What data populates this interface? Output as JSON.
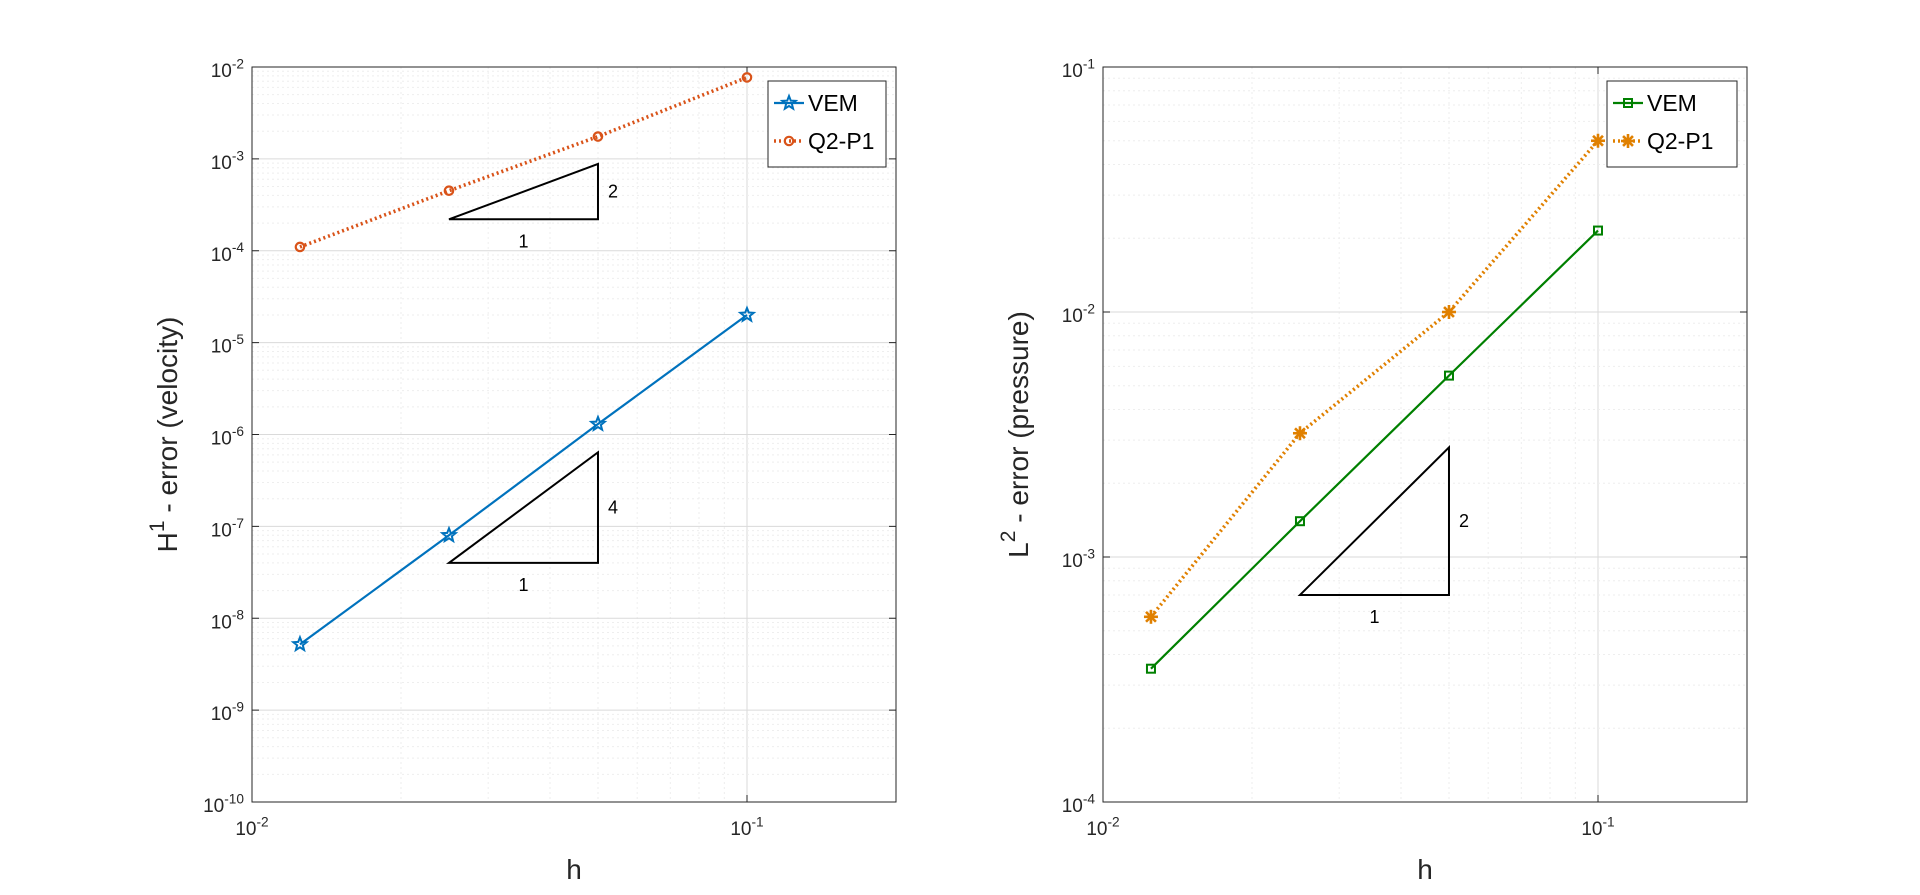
{
  "colors": {
    "vem_left": "#0072BD",
    "q2p1_left": "#D95319",
    "vem_right": "#008000",
    "q2p1_right": "#E08000",
    "axes": "#262626",
    "grid_major": "#DADADA",
    "grid_minor": "#EEEEEE",
    "triangle": "#000000"
  },
  "chart_data": [
    {
      "type": "line",
      "xscale": "log",
      "yscale": "log",
      "xlabel": "h",
      "ylabel_main": "H",
      "ylabel_sup": "1",
      "ylabel_rest": " - error (velocity)",
      "xlim": [
        0.01,
        0.2
      ],
      "ylim": [
        1e-10,
        0.01
      ],
      "xticks": [
        {
          "value": 0.01,
          "base": "10",
          "exp": "-2"
        },
        {
          "value": 0.1,
          "base": "10",
          "exp": "-1"
        }
      ],
      "yticks": [
        {
          "value": 1e-10,
          "base": "10",
          "exp": "-10"
        },
        {
          "value": 1e-09,
          "base": "10",
          "exp": "-9"
        },
        {
          "value": 1e-08,
          "base": "10",
          "exp": "-8"
        },
        {
          "value": 1e-07,
          "base": "10",
          "exp": "-7"
        },
        {
          "value": 1e-06,
          "base": "10",
          "exp": "-6"
        },
        {
          "value": 1e-05,
          "base": "10",
          "exp": "-5"
        },
        {
          "value": 0.0001,
          "base": "10",
          "exp": "-4"
        },
        {
          "value": 0.001,
          "base": "10",
          "exp": "-3"
        },
        {
          "value": 0.01,
          "base": "10",
          "exp": "-2"
        }
      ],
      "grid": true,
      "legend_position": "top-right",
      "series": [
        {
          "name": "VEM",
          "x": [
            0.0125,
            0.025,
            0.05,
            0.1
          ],
          "y": [
            5.2e-09,
            8e-08,
            1.3e-06,
            2e-05
          ],
          "color_key": "vem_left",
          "linestyle": "solid",
          "marker": "star"
        },
        {
          "name": "Q2-P1",
          "x": [
            0.0125,
            0.025,
            0.05,
            0.1
          ],
          "y": [
            0.00011,
            0.00045,
            0.00175,
            0.0077
          ],
          "color_key": "q2p1_left",
          "linestyle": "dotted",
          "marker": "circle"
        }
      ],
      "slope_triangles": [
        {
          "x0": 0.025,
          "x1": 0.05,
          "y0": 0.00022,
          "y1": 0.00088,
          "run_label": "1",
          "rise_label": "2"
        },
        {
          "x0": 0.025,
          "x1": 0.05,
          "y0": 4e-08,
          "y1": 6.4e-07,
          "run_label": "1",
          "rise_label": "4"
        }
      ]
    },
    {
      "type": "line",
      "xscale": "log",
      "yscale": "log",
      "xlabel": "h",
      "ylabel_main": "L",
      "ylabel_sup": "2",
      "ylabel_rest": " - error (pressure)",
      "xlim": [
        0.01,
        0.2
      ],
      "ylim": [
        0.0001,
        0.1
      ],
      "xticks": [
        {
          "value": 0.01,
          "base": "10",
          "exp": "-2"
        },
        {
          "value": 0.1,
          "base": "10",
          "exp": "-1"
        }
      ],
      "yticks": [
        {
          "value": 0.0001,
          "base": "10",
          "exp": "-4"
        },
        {
          "value": 0.001,
          "base": "10",
          "exp": "-3"
        },
        {
          "value": 0.01,
          "base": "10",
          "exp": "-2"
        },
        {
          "value": 0.1,
          "base": "10",
          "exp": "-1"
        }
      ],
      "grid": true,
      "legend_position": "top-right",
      "series": [
        {
          "name": "VEM",
          "x": [
            0.0125,
            0.025,
            0.05,
            0.1
          ],
          "y": [
            0.00035,
            0.0014,
            0.0055,
            0.0215
          ],
          "color_key": "vem_right",
          "linestyle": "solid",
          "marker": "square"
        },
        {
          "name": "Q2-P1",
          "x": [
            0.0125,
            0.025,
            0.05,
            0.1
          ],
          "y": [
            0.00057,
            0.0032,
            0.01,
            0.05
          ],
          "color_key": "q2p1_right",
          "linestyle": "dotted",
          "marker": "asterisk"
        }
      ],
      "slope_triangles": [
        {
          "x0": 0.025,
          "x1": 0.05,
          "y0": 0.0007,
          "y1": 0.0028,
          "run_label": "1",
          "rise_label": "2"
        }
      ]
    }
  ]
}
